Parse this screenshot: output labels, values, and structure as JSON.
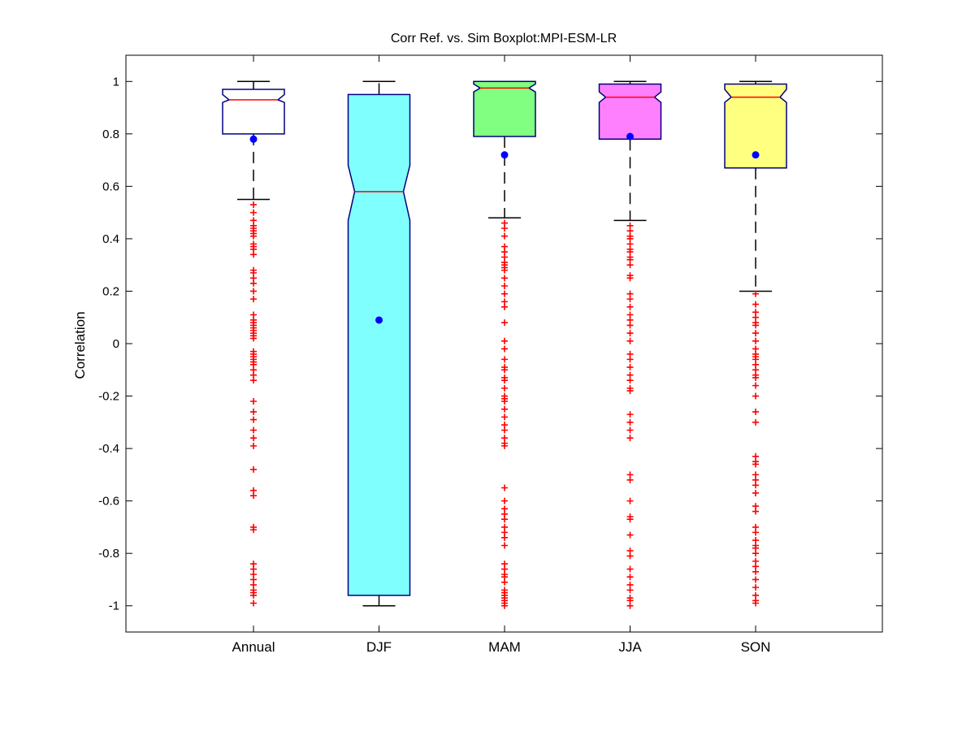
{
  "chart_data": {
    "type": "box",
    "title": "Corr Ref. vs. Sim Boxplot:MPI-ESM-LR",
    "xlabel": "",
    "ylabel": "Correlation",
    "ylim": [
      -1.1,
      1.1
    ],
    "yticks": [
      1,
      0.8,
      0.6,
      0.4,
      0.2,
      0,
      -0.2,
      -0.4,
      -0.6,
      -0.8,
      -1
    ],
    "ytick_labels": [
      "1",
      "0.8",
      "0.6",
      "0.4",
      "0.2",
      "0",
      "-0.2",
      "-0.4",
      "-0.6",
      "-0.8",
      "-1"
    ],
    "grid": false,
    "notched": true,
    "categories": [
      "Annual",
      "DJF",
      "MAM",
      "JJA",
      "SON"
    ],
    "boxes": [
      {
        "category": "Annual",
        "fill": "#ffffff",
        "whisker_low": 0.55,
        "q1": 0.8,
        "median": 0.93,
        "q3": 0.97,
        "whisker_high": 1.0,
        "notch_low": 0.92,
        "notch_high": 0.95,
        "mean": 0.78,
        "outliers": [
          0.53,
          0.5,
          0.47,
          0.45,
          0.44,
          0.43,
          0.42,
          0.41,
          0.38,
          0.37,
          0.36,
          0.34,
          0.28,
          0.27,
          0.25,
          0.23,
          0.2,
          0.17,
          0.11,
          0.09,
          0.08,
          0.07,
          0.06,
          0.05,
          0.04,
          0.03,
          0.02,
          -0.03,
          -0.04,
          -0.05,
          -0.06,
          -0.07,
          -0.08,
          -0.1,
          -0.12,
          -0.14,
          -0.22,
          -0.26,
          -0.29,
          -0.33,
          -0.36,
          -0.39,
          -0.48,
          -0.56,
          -0.58,
          -0.7,
          -0.71,
          -0.84,
          -0.86,
          -0.88,
          -0.9,
          -0.92,
          -0.94,
          -0.95,
          -0.96,
          -0.99
        ]
      },
      {
        "category": "DJF",
        "fill": "#80ffff",
        "whisker_low": -1.0,
        "q1": -0.96,
        "median": 0.58,
        "q3": 0.95,
        "whisker_high": 1.0,
        "notch_low": 0.47,
        "notch_high": 0.68,
        "mean": 0.09,
        "outliers": []
      },
      {
        "category": "MAM",
        "fill": "#80ff80",
        "whisker_low": 0.48,
        "q1": 0.79,
        "median": 0.975,
        "q3": 1.0,
        "whisker_high": 1.0,
        "notch_low": 0.96,
        "notch_high": 0.99,
        "mean": 0.72,
        "outliers": [
          0.46,
          0.44,
          0.41,
          0.37,
          0.35,
          0.33,
          0.31,
          0.3,
          0.29,
          0.28,
          0.25,
          0.22,
          0.19,
          0.16,
          0.14,
          0.08,
          0.01,
          -0.02,
          -0.06,
          -0.09,
          -0.1,
          -0.13,
          -0.14,
          -0.17,
          -0.2,
          -0.21,
          -0.22,
          -0.25,
          -0.28,
          -0.31,
          -0.33,
          -0.36,
          -0.38,
          -0.39,
          -0.55,
          -0.6,
          -0.63,
          -0.65,
          -0.67,
          -0.7,
          -0.72,
          -0.74,
          -0.77,
          -0.84,
          -0.86,
          -0.88,
          -0.89,
          -0.91,
          -0.94,
          -0.95,
          -0.96,
          -0.97,
          -0.98,
          -0.99,
          -1.0
        ]
      },
      {
        "category": "JJA",
        "fill": "#ff80ff",
        "whisker_low": 0.47,
        "q1": 0.78,
        "median": 0.94,
        "q3": 0.99,
        "whisker_high": 1.0,
        "notch_low": 0.92,
        "notch_high": 0.96,
        "mean": 0.79,
        "outliers": [
          0.45,
          0.43,
          0.41,
          0.4,
          0.38,
          0.36,
          0.35,
          0.33,
          0.32,
          0.3,
          0.26,
          0.25,
          0.19,
          0.17,
          0.14,
          0.11,
          0.09,
          0.07,
          0.04,
          0.01,
          -0.04,
          -0.06,
          -0.09,
          -0.12,
          -0.14,
          -0.17,
          -0.18,
          -0.27,
          -0.3,
          -0.33,
          -0.36,
          -0.5,
          -0.52,
          -0.6,
          -0.66,
          -0.67,
          -0.73,
          -0.79,
          -0.81,
          -0.86,
          -0.89,
          -0.92,
          -0.94,
          -0.97,
          -0.98,
          -1.0
        ]
      },
      {
        "category": "SON",
        "fill": "#ffff80",
        "whisker_low": 0.2,
        "q1": 0.67,
        "median": 0.94,
        "q3": 0.99,
        "whisker_high": 1.0,
        "notch_low": 0.92,
        "notch_high": 0.97,
        "mean": 0.72,
        "outliers": [
          0.19,
          0.15,
          0.12,
          0.1,
          0.08,
          0.07,
          0.04,
          0.01,
          -0.02,
          -0.04,
          -0.05,
          -0.06,
          -0.08,
          -0.1,
          -0.12,
          -0.13,
          -0.16,
          -0.2,
          -0.26,
          -0.3,
          -0.43,
          -0.45,
          -0.46,
          -0.5,
          -0.52,
          -0.54,
          -0.57,
          -0.62,
          -0.64,
          -0.7,
          -0.72,
          -0.75,
          -0.77,
          -0.78,
          -0.8,
          -0.83,
          -0.85,
          -0.87,
          -0.9,
          -0.93,
          -0.96,
          -0.98,
          -0.99
        ]
      }
    ],
    "colors": {
      "box_outline": "#000080",
      "median_line": "#ff0000",
      "whisker": "#000000",
      "mean_marker": "#0000ff",
      "outlier_marker": "#ff0000",
      "outlier_symbol": "+"
    }
  }
}
